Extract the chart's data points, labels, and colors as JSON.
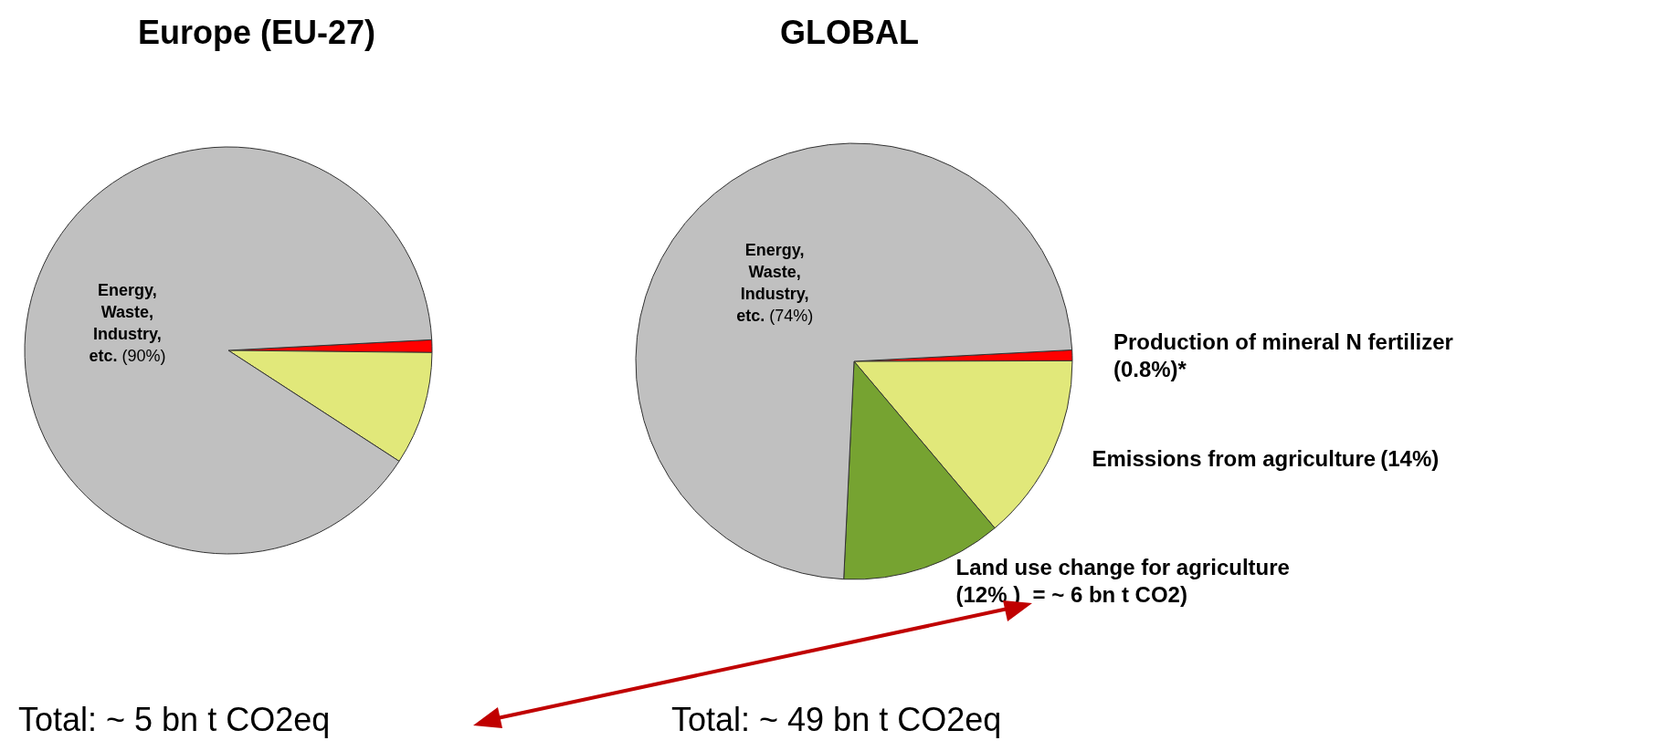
{
  "chart_data": [
    {
      "type": "pie",
      "title": "Europe (EU-27)",
      "categories": [
        null,
        null,
        "Energy, Waste, Industry, etc."
      ],
      "values": [
        1,
        9,
        90
      ],
      "colors": [
        "#ff0000",
        "#e1e87a",
        "#c0c0c0"
      ],
      "value_labels": [
        null,
        null,
        "(90%)"
      ],
      "annotations": [
        "Total: ~ 5 bn t CO2eq"
      ]
    },
    {
      "type": "pie",
      "title": "GLOBAL",
      "categories": [
        "Production of mineral N fertilizer",
        "Emissions from agriculture",
        "Land use change for agriculture",
        "Energy, Waste, Industry, etc."
      ],
      "values": [
        0.8,
        14,
        12,
        74
      ],
      "colors": [
        "#ff0000",
        "#e1e87a",
        "#76a331",
        "#c0c0c0"
      ],
      "value_labels": [
        "(0.8%)*",
        "(14%)",
        "(12% )  = ~ 6 bn t CO2)",
        "(74%)"
      ],
      "annotations": [
        "Total: ~ 49 bn t CO2eq"
      ]
    }
  ]
}
